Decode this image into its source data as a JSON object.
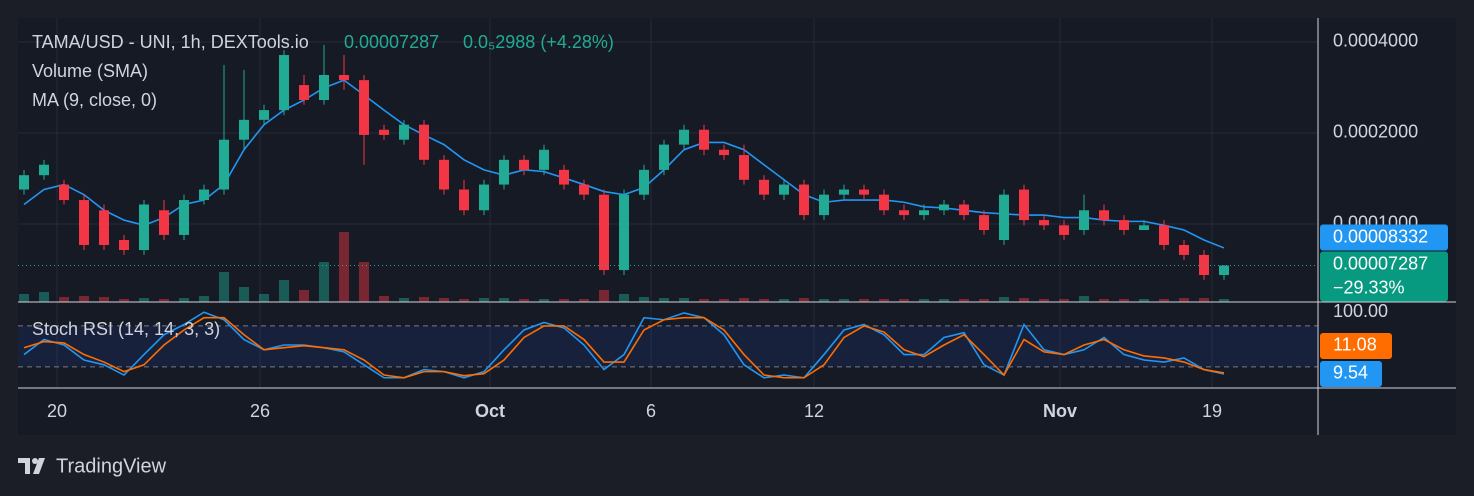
{
  "chart_data": {
    "type": "candlestick",
    "title": "TAMA/USD - UNI, 1h, DEXTools.io",
    "change": "0.0₅2988 (+4.28%)",
    "change_pct_label": "−29.33%",
    "volume_label": "Volume (SMA)",
    "ma_label": "MA (9, close, 0)",
    "up_color": "#22ab94",
    "down_color": "#f23645",
    "log_scale": true,
    "grid": true,
    "ylim": [
      5.52e-05,
      0.00048
    ],
    "yticks": [
      {
        "value": 0.0004,
        "label": "0.0004000"
      },
      {
        "value": 0.0002,
        "label": "0.0002000"
      },
      {
        "value": 0.0001,
        "label": "0.0001000"
      }
    ],
    "xticks": [
      {
        "value": 1.65,
        "label": "20"
      },
      {
        "value": 11.8,
        "label": "26"
      },
      {
        "value": 23.3,
        "label": "Oct"
      },
      {
        "value": 31.35,
        "label": "6"
      },
      {
        "value": 39.5,
        "label": "12"
      },
      {
        "value": 51.8,
        "label": "Nov"
      },
      {
        "value": 59.4,
        "label": "19"
      }
    ],
    "open": [
      0.00013,
      0.000145,
      0.000135,
      0.00012,
      0.000111,
      8.85e-05,
      8.2e-05,
      0.000111,
      9.2e-05,
      0.00012,
      0.00013,
      0.00019,
      0.000221,
      0.000238,
      0.000288,
      0.000257,
      0.000311,
      0.000299,
      0.000205,
      0.00019,
      0.000213,
      0.000163,
      0.00013,
      0.000111,
      0.000135,
      0.000163,
      0.000151,
      0.000151,
      0.000135,
      0.000125,
      7.04e-05,
      0.000125,
      0.000151,
      0.000183,
      0.000205,
      0.000176,
      0.000169,
      0.00014,
      0.000125,
      0.000135,
      0.000107,
      0.000125,
      0.00013,
      0.000125,
      0.000111,
      0.000107,
      0.000111,
      0.000116,
      0.000107,
      8.85e-05,
      0.00013,
      0.000103,
      9.9e-05,
      9.55e-05,
      0.000111,
      0.000103,
      9.55e-05,
      9.9e-05,
      8.52e-05,
      7.9e-05,
      6.78e-05
    ],
    "high": [
      0.000151,
      0.000163,
      0.00014,
      0.000125,
      0.000116,
      9.2e-05,
      0.00012,
      0.00012,
      0.000125,
      0.000135,
      0.000336,
      0.000323,
      0.000248,
      0.000376,
      0.000311,
      0.000391,
      0.000362,
      0.000311,
      0.000213,
      0.000221,
      0.000221,
      0.000169,
      0.00014,
      0.00014,
      0.000169,
      0.000169,
      0.000183,
      0.000157,
      0.00014,
      0.00013,
      0.00013,
      0.000157,
      0.00019,
      0.000213,
      0.000213,
      0.000183,
      0.000183,
      0.000145,
      0.00014,
      0.00014,
      0.00013,
      0.000135,
      0.000135,
      0.00013,
      0.000116,
      0.000116,
      0.00012,
      0.00012,
      0.000111,
      0.00013,
      0.000135,
      0.000107,
      0.000103,
      0.000125,
      0.000116,
      0.000107,
      0.000103,
      0.000103,
      8.85e-05,
      8.2e-05,
      7.32e-05
    ],
    "low": [
      0.000125,
      0.00014,
      0.000116,
      8.2e-05,
      8.2e-05,
      7.9e-05,
      7.9e-05,
      8.85e-05,
      8.85e-05,
      0.000116,
      0.000125,
      0.000176,
      0.000213,
      0.000229,
      0.000248,
      0.000248,
      0.000278,
      0.000157,
      0.00019,
      0.000183,
      0.000157,
      0.000125,
      0.000107,
      0.000107,
      0.00013,
      0.000145,
      0.000145,
      0.00013,
      0.00012,
      6.78e-05,
      6.78e-05,
      0.00012,
      0.000145,
      0.000176,
      0.000169,
      0.000163,
      0.000135,
      0.00012,
      0.00012,
      0.000103,
      0.000103,
      0.00012,
      0.00012,
      0.000107,
      0.000103,
      0.000103,
      0.000107,
      0.000103,
      9.2e-05,
      8.52e-05,
      9.9e-05,
      9.55e-05,
      8.85e-05,
      9.2e-05,
      9.9e-05,
      9.2e-05,
      9.55e-05,
      8.2e-05,
      7.6e-05,
      6.53e-05,
      6.53e-05
    ],
    "close": [
      0.000145,
      0.000157,
      0.00012,
      8.52e-05,
      8.52e-05,
      8.2e-05,
      0.000116,
      9.2e-05,
      0.00012,
      0.00013,
      0.00019,
      0.000221,
      0.000238,
      0.000362,
      0.000257,
      0.000311,
      0.000299,
      0.000197,
      0.000197,
      0.000213,
      0.000163,
      0.00013,
      0.000111,
      0.000135,
      0.000163,
      0.000151,
      0.000176,
      0.000135,
      0.000125,
      7.04e-05,
      0.000125,
      0.000151,
      0.000183,
      0.000205,
      0.000176,
      0.000169,
      0.00014,
      0.000125,
      0.000135,
      0.000107,
      0.000125,
      0.00013,
      0.000125,
      0.000111,
      0.000107,
      0.000111,
      0.000116,
      0.000107,
      9.55e-05,
      0.000125,
      0.000103,
      9.9e-05,
      9.2e-05,
      0.000111,
      0.000103,
      9.55e-05,
      9.9e-05,
      8.52e-05,
      7.9e-05,
      6.78e-05,
      7.287e-05
    ],
    "volume": [
      8,
      10,
      5,
      6,
      5,
      3,
      4,
      3,
      4,
      6,
      30,
      15,
      8,
      22,
      12,
      40,
      70,
      40,
      6,
      4,
      5,
      4,
      3,
      4,
      4,
      3,
      3,
      3,
      3,
      12,
      8,
      5,
      4,
      4,
      3,
      3,
      4,
      3,
      3,
      4,
      3,
      3,
      3,
      3,
      3,
      3,
      3,
      3,
      3,
      5,
      4,
      3,
      3,
      6,
      3,
      3,
      3,
      3,
      4,
      4,
      3
    ],
    "ma": {
      "color": "#2196f3",
      "values": [
        0.000116,
        0.00013,
        0.000135,
        0.000125,
        0.000111,
        0.000103,
        9.9e-05,
        0.000105,
        0.000116,
        0.00012,
        0.000135,
        0.000176,
        0.000213,
        0.000238,
        0.000257,
        0.000282,
        0.000299,
        0.000267,
        0.000238,
        0.000213,
        0.000197,
        0.000183,
        0.000163,
        0.000151,
        0.000145,
        0.000151,
        0.000149,
        0.000142,
        0.000135,
        0.000128,
        0.000125,
        0.000132,
        0.000151,
        0.000176,
        0.000186,
        0.000186,
        0.000176,
        0.000157,
        0.00014,
        0.000125,
        0.000118,
        0.00012,
        0.00012,
        0.00012,
        0.000118,
        0.000114,
        0.000113,
        0.000111,
        0.000109,
        0.000108,
        0.000107,
        0.000107,
        0.000105,
        0.000105,
        0.000103,
        0.000102,
        0.000102,
        9.9e-05,
        9.55e-05,
        8.85e-05,
        8.332e-05
      ]
    },
    "stoch": {
      "label": "Stoch RSI (14, 14, 3, 3)",
      "ylim": [
        -11,
        115
      ],
      "yticks": [
        {
          "value": 100,
          "label": "100.00"
        }
      ],
      "bands": [
        20,
        80
      ],
      "series": [
        {
          "color": "#2196f3",
          "values": [
            38,
            60,
            52,
            30,
            23,
            8,
            38,
            67,
            82,
            100,
            89,
            60,
            45,
            52,
            52,
            48,
            42,
            23,
            4,
            4,
            16,
            13,
            4,
            13,
            45,
            74,
            85,
            77,
            52,
            16,
            38,
            92,
            89,
            99,
            92,
            67,
            23,
            4,
            8,
            4,
            38,
            74,
            82,
            67,
            38,
            38,
            63,
            70,
            23,
            8,
            82,
            45,
            38,
            45,
            63,
            38,
            30,
            27,
            33,
            16,
            9.54
          ]
        },
        {
          "color": "#ff6d00",
          "values": [
            48,
            57,
            55,
            38,
            27,
            13,
            23,
            52,
            74,
            92,
            92,
            67,
            45,
            48,
            51,
            48,
            45,
            30,
            8,
            4,
            13,
            13,
            7,
            10,
            30,
            63,
            80,
            80,
            60,
            27,
            27,
            74,
            89,
            92,
            92,
            74,
            38,
            8,
            4,
            4,
            23,
            63,
            80,
            71,
            45,
            35,
            52,
            67,
            38,
            8,
            60,
            42,
            38,
            52,
            60,
            45,
            36,
            33,
            27,
            16,
            11.08
          ]
        }
      ]
    }
  },
  "brand": "TradingView"
}
